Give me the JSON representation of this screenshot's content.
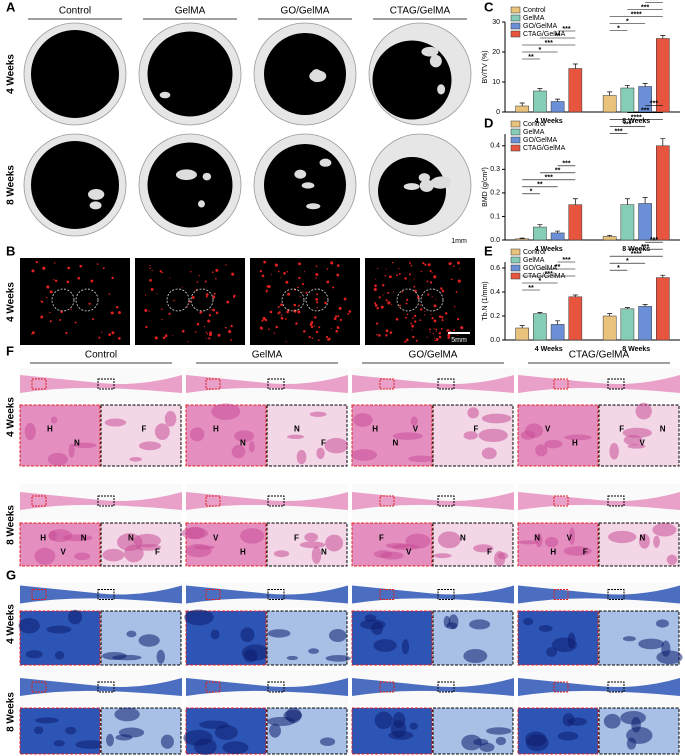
{
  "panels": [
    "A",
    "B",
    "C",
    "D",
    "E",
    "F",
    "G"
  ],
  "groups": [
    "Control",
    "GelMA",
    "GO/GelMA",
    "CTAG/GelMA"
  ],
  "ct": {
    "rows": [
      "4 Weeks",
      "8 Weeks"
    ],
    "scale": "1mm"
  },
  "fluor": {
    "row": "4 Weeks",
    "scale": "5mm"
  },
  "he": {
    "rows": [
      "4 Weeks",
      "8 Weeks"
    ],
    "letters": [
      [
        [
          "H",
          "N"
        ],
        [
          "F"
        ],
        [
          "H",
          "N"
        ],
        [
          "N",
          "F"
        ],
        [
          "H",
          "N",
          "V"
        ],
        [
          "F"
        ],
        [
          "V",
          "H"
        ],
        [
          "F",
          "V",
          "N"
        ]
      ],
      [
        [
          "H",
          "V",
          "N"
        ],
        [
          "N",
          "F"
        ],
        [
          "V",
          "H"
        ],
        [
          "F",
          "N"
        ],
        [
          "F",
          "V"
        ],
        [
          "N",
          "F"
        ],
        [
          "N",
          "H",
          "V",
          "F"
        ],
        [
          "N"
        ]
      ]
    ]
  },
  "masson": {
    "rows": [
      "4 Weeks",
      "8 Weeks"
    ]
  },
  "chart_data": [
    {
      "type": "bar",
      "ylabel": "BV/TV (%)",
      "categories": [
        "4 Weeks",
        "8 Weeks"
      ],
      "series": [
        {
          "name": "Control",
          "color": "#e9c27b",
          "values": [
            2,
            5.5
          ],
          "errors": [
            1,
            1.2
          ]
        },
        {
          "name": "GelMA",
          "color": "#86cdb8",
          "values": [
            7,
            8
          ],
          "errors": [
            0.8,
            0.9
          ]
        },
        {
          "name": "GO/GelMA",
          "color": "#6b8fd6",
          "values": [
            3.5,
            8.5
          ],
          "errors": [
            0.8,
            1
          ]
        },
        {
          "name": "CTAG/GelMA",
          "color": "#e8553e",
          "values": [
            14.5,
            24.5
          ],
          "errors": [
            1.5,
            1
          ]
        }
      ],
      "ylim": [
        0,
        30
      ],
      "yticks": [
        0,
        10,
        20,
        30
      ],
      "significance": [
        [
          "**",
          "*",
          "***",
          "**",
          "***"
        ],
        [
          "*",
          "*",
          "****",
          "***",
          "***"
        ]
      ]
    },
    {
      "type": "bar",
      "ylabel": "BMD (g/cm³)",
      "categories": [
        "4 Weeks",
        "8 Weeks"
      ],
      "series": [
        {
          "name": "Control",
          "color": "#e9c27b",
          "values": [
            0.005,
            0.015
          ],
          "errors": [
            0.003,
            0.005
          ]
        },
        {
          "name": "GelMA",
          "color": "#86cdb8",
          "values": [
            0.055,
            0.15
          ],
          "errors": [
            0.01,
            0.025
          ]
        },
        {
          "name": "GO/GelMA",
          "color": "#6b8fd6",
          "values": [
            0.03,
            0.155
          ],
          "errors": [
            0.008,
            0.025
          ]
        },
        {
          "name": "CTAG/GelMA",
          "color": "#e8553e",
          "values": [
            0.15,
            0.4
          ],
          "errors": [
            0.025,
            0.03
          ]
        }
      ],
      "ylim": [
        0,
        0.45
      ],
      "yticks": [
        {
          "value": 0,
          "label": "0.0"
        },
        0.1,
        0.2,
        0.3,
        0.4
      ],
      "significance": [
        [
          "*",
          "**",
          "***",
          "**",
          "***"
        ],
        [
          "***",
          "***",
          "****",
          "***",
          "***"
        ]
      ]
    },
    {
      "type": "bar",
      "ylabel": "Tb.N (1/mm)",
      "categories": [
        "4 Weeks",
        "8 Weeks"
      ],
      "series": [
        {
          "name": "Control",
          "color": "#e9c27b",
          "values": [
            0.1,
            0.2
          ],
          "errors": [
            0.02,
            0.02
          ]
        },
        {
          "name": "GelMA",
          "color": "#86cdb8",
          "values": [
            0.22,
            0.26
          ],
          "errors": [
            0.01,
            0.01
          ]
        },
        {
          "name": "GO/GelMA",
          "color": "#6b8fd6",
          "values": [
            0.13,
            0.28
          ],
          "errors": [
            0.03,
            0.015
          ]
        },
        {
          "name": "CTAG/GelMA",
          "color": "#e8553e",
          "values": [
            0.36,
            0.52
          ],
          "errors": [
            0.015,
            0.02
          ]
        }
      ],
      "ylim": [
        0,
        0.65
      ],
      "yticks": [
        {
          "value": 0,
          "label": "0.0"
        },
        0.2,
        0.4,
        0.6
      ],
      "significance": [
        [
          "**",
          "*",
          "***",
          "**",
          "***"
        ],
        [
          "*",
          "*",
          "****",
          "***",
          "***"
        ]
      ]
    }
  ]
}
